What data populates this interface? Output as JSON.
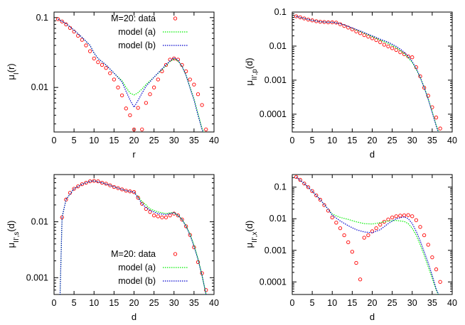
{
  "chart_data": [
    {
      "id": "top-left",
      "type": "scatter",
      "xlabel": "r",
      "ylabel": "μ_I(r)",
      "xlim": [
        0,
        40
      ],
      "ylim": [
        0.0023,
        0.12
      ],
      "yscale": "log",
      "xticks": [
        "0",
        "5",
        "10",
        "15",
        "20",
        "25",
        "30",
        "35",
        "40"
      ],
      "yticks": [
        {
          "v": 0.1,
          "label": "0.1"
        },
        {
          "v": 0.01,
          "label": "0.01"
        }
      ],
      "legend": "top-right",
      "series": [
        {
          "name": "M=20: data",
          "style": "points",
          "color": "#ff0000",
          "x": [
            1,
            2,
            3,
            4,
            5,
            6,
            7,
            8,
            9,
            10,
            11,
            12,
            13,
            14,
            15,
            16,
            17,
            18,
            19,
            20,
            21,
            22,
            23,
            24,
            25,
            26,
            27,
            28,
            29,
            30,
            31,
            32,
            33,
            34,
            35,
            36,
            37,
            38
          ],
          "y": [
            0.095,
            0.088,
            0.08,
            0.071,
            0.063,
            0.055,
            0.048,
            0.04,
            0.033,
            0.026,
            0.023,
            0.021,
            0.019,
            0.016,
            0.013,
            0.01,
            0.0077,
            0.005,
            0.004,
            0.0025,
            0.0051,
            0.0025,
            0.006,
            0.008,
            0.01,
            0.013,
            0.017,
            0.021,
            0.025,
            0.026,
            0.025,
            0.021,
            0.017,
            0.013,
            0.011,
            0.008,
            0.0056,
            0.0025
          ]
        },
        {
          "name": "model (a)",
          "style": "dots",
          "color": "#00ee00",
          "x": [
            1,
            3,
            5,
            7,
            9,
            10,
            11,
            13,
            15,
            17,
            18,
            19,
            20,
            21,
            22,
            23,
            25,
            27,
            29,
            30,
            31,
            32,
            33,
            34,
            35,
            36,
            37,
            38
          ],
          "y": [
            0.095,
            0.082,
            0.066,
            0.052,
            0.04,
            0.031,
            0.026,
            0.021,
            0.016,
            0.0125,
            0.01,
            0.0083,
            0.0078,
            0.0084,
            0.0095,
            0.011,
            0.014,
            0.018,
            0.0235,
            0.0255,
            0.024,
            0.02,
            0.015,
            0.01,
            0.0068,
            0.0042,
            0.0026,
            0.002
          ]
        },
        {
          "name": "model (b)",
          "style": "dots",
          "color": "#0000cc",
          "x": [
            1,
            3,
            5,
            7,
            9,
            10,
            11,
            13,
            15,
            17,
            18,
            19,
            20,
            21,
            22,
            23,
            25,
            27,
            29,
            30,
            31,
            32,
            33,
            34,
            35,
            36,
            37,
            38
          ],
          "y": [
            0.095,
            0.082,
            0.066,
            0.052,
            0.04,
            0.031,
            0.026,
            0.021,
            0.016,
            0.012,
            0.0088,
            0.0066,
            0.0052,
            0.0065,
            0.0083,
            0.0104,
            0.014,
            0.0185,
            0.024,
            0.0265,
            0.0245,
            0.02,
            0.015,
            0.0098,
            0.0066,
            0.004,
            0.0025,
            0.0019
          ]
        }
      ]
    },
    {
      "id": "top-right",
      "type": "scatter",
      "xlabel": "d",
      "ylabel": "μ_{II',p}(d)",
      "xlim": [
        0,
        40
      ],
      "ylim": [
        3e-05,
        0.1
      ],
      "yscale": "log",
      "xticks": [
        "0",
        "5",
        "10",
        "15",
        "20",
        "25",
        "30",
        "35",
        "40"
      ],
      "yticks": [
        {
          "v": 0.1,
          "label": "0.1"
        },
        {
          "v": 0.01,
          "label": "0.01"
        },
        {
          "v": 0.001,
          "label": "0.001"
        },
        {
          "v": 0.0001,
          "label": "0.0001"
        }
      ],
      "series": [
        {
          "name": "data",
          "style": "points",
          "color": "#ff0000",
          "x": [
            1,
            2,
            3,
            4,
            5,
            6,
            7,
            8,
            9,
            10,
            11,
            12,
            13,
            14,
            15,
            16,
            17,
            18,
            19,
            20,
            21,
            22,
            23,
            24,
            25,
            26,
            27,
            28,
            29,
            30,
            31,
            32,
            33,
            34,
            35,
            36,
            37
          ],
          "y": [
            0.075,
            0.07,
            0.065,
            0.06,
            0.057,
            0.054,
            0.052,
            0.051,
            0.05,
            0.05,
            0.049,
            0.044,
            0.039,
            0.035,
            0.031,
            0.027,
            0.024,
            0.021,
            0.019,
            0.017,
            0.015,
            0.013,
            0.011,
            0.0098,
            0.0087,
            0.0077,
            0.0066,
            0.0058,
            0.005,
            0.0047,
            0.0024,
            0.0013,
            0.0006,
            0.00035,
            0.00016,
            8e-05,
            3.8e-05
          ]
        },
        {
          "name": "model (a)",
          "style": "dots",
          "color": "#00ee00",
          "x": [
            1,
            3,
            5,
            7,
            9,
            10,
            12,
            14,
            16,
            18,
            20,
            22,
            24,
            26,
            27,
            28,
            29,
            30,
            31,
            32,
            33,
            34,
            35,
            36,
            37
          ],
          "y": [
            0.075,
            0.065,
            0.057,
            0.052,
            0.05,
            0.05,
            0.046,
            0.038,
            0.03,
            0.024,
            0.019,
            0.015,
            0.012,
            0.009,
            0.0075,
            0.006,
            0.0046,
            0.0033,
            0.0021,
            0.0012,
            0.00062,
            0.00028,
            0.00012,
            4.8e-05,
            2.2e-05
          ]
        },
        {
          "name": "model (b)",
          "style": "dots",
          "color": "#0000cc",
          "x": [
            1,
            3,
            5,
            7,
            9,
            10,
            12,
            14,
            16,
            18,
            20,
            22,
            24,
            26,
            27,
            28,
            29,
            30,
            31,
            32,
            33,
            34,
            35,
            36,
            37
          ],
          "y": [
            0.075,
            0.065,
            0.057,
            0.052,
            0.05,
            0.05,
            0.046,
            0.038,
            0.031,
            0.025,
            0.02,
            0.016,
            0.013,
            0.0098,
            0.0082,
            0.0066,
            0.005,
            0.0035,
            0.0022,
            0.0012,
            0.0006,
            0.00027,
            0.00011,
            4.5e-05,
            2e-05
          ]
        }
      ]
    },
    {
      "id": "bottom-left",
      "type": "scatter",
      "xlabel": "d",
      "ylabel": "μ_{II',s}(d)",
      "xlim": [
        0,
        40
      ],
      "ylim": [
        0.0005,
        0.07
      ],
      "yscale": "log",
      "xticks": [
        "0",
        "5",
        "10",
        "15",
        "20",
        "25",
        "30",
        "35",
        "40"
      ],
      "yticks": [
        {
          "v": 0.01,
          "label": "0.01"
        },
        {
          "v": 0.001,
          "label": "0.001"
        }
      ],
      "legend": "bottom-right",
      "series": [
        {
          "name": "M=20: data",
          "style": "points",
          "color": "#ff0000",
          "x": [
            2,
            3,
            4,
            5,
            6,
            7,
            8,
            9,
            10,
            11,
            12,
            13,
            14,
            15,
            16,
            17,
            18,
            19,
            20,
            21,
            22,
            23,
            24,
            25,
            26,
            27,
            28,
            29,
            30,
            31,
            32,
            33,
            34,
            35,
            36,
            37,
            38
          ],
          "y": [
            0.012,
            0.025,
            0.033,
            0.039,
            0.043,
            0.047,
            0.05,
            0.053,
            0.054,
            0.053,
            0.05,
            0.048,
            0.045,
            0.042,
            0.04,
            0.038,
            0.036,
            0.035,
            0.034,
            0.027,
            0.021,
            0.017,
            0.015,
            0.013,
            0.0125,
            0.012,
            0.012,
            0.013,
            0.014,
            0.013,
            0.011,
            0.0083,
            0.0058,
            0.0035,
            0.0019,
            0.0012,
            0.0006
          ]
        },
        {
          "name": "model (a)",
          "style": "dots",
          "color": "#00ee00",
          "x": [
            1.5,
            2,
            3,
            5,
            7,
            9,
            10,
            12,
            14,
            16,
            18,
            20,
            21,
            22,
            23,
            24,
            26,
            28,
            29,
            30,
            31,
            32,
            33,
            34,
            35,
            36,
            37,
            38
          ],
          "y": [
            0.00045,
            0.012,
            0.025,
            0.039,
            0.047,
            0.053,
            0.054,
            0.05,
            0.045,
            0.04,
            0.036,
            0.034,
            0.028,
            0.023,
            0.02,
            0.017,
            0.015,
            0.014,
            0.0145,
            0.0145,
            0.013,
            0.011,
            0.0085,
            0.006,
            0.0038,
            0.0022,
            0.0011,
            0.0005
          ]
        },
        {
          "name": "model (b)",
          "style": "dots",
          "color": "#0000cc",
          "x": [
            1.5,
            2,
            3,
            5,
            7,
            9,
            10,
            12,
            14,
            16,
            18,
            20,
            21,
            22,
            23,
            24,
            26,
            28,
            29,
            30,
            31,
            32,
            33,
            34,
            35,
            36,
            37,
            38
          ],
          "y": [
            0.00045,
            0.012,
            0.025,
            0.039,
            0.047,
            0.053,
            0.054,
            0.05,
            0.045,
            0.04,
            0.036,
            0.034,
            0.027,
            0.021,
            0.018,
            0.016,
            0.014,
            0.0135,
            0.014,
            0.0145,
            0.013,
            0.011,
            0.0083,
            0.0058,
            0.0036,
            0.0021,
            0.0011,
            0.0005
          ]
        }
      ]
    },
    {
      "id": "bottom-right",
      "type": "scatter",
      "xlabel": "d",
      "ylabel": "μ_{II',x}(d)",
      "xlim": [
        0,
        40
      ],
      "ylim": [
        4e-05,
        0.25
      ],
      "yscale": "log",
      "xticks": [
        "0",
        "5",
        "10",
        "15",
        "20",
        "25",
        "30",
        "35",
        "40"
      ],
      "yticks": [
        {
          "v": 0.1,
          "label": "0.1"
        },
        {
          "v": 0.01,
          "label": "0.01"
        },
        {
          "v": 0.001,
          "label": "0.001"
        },
        {
          "v": 0.0001,
          "label": "0.0001"
        }
      ],
      "series": [
        {
          "name": "data",
          "style": "points",
          "color": "#ff0000",
          "x": [
            1,
            2,
            3,
            4,
            5,
            6,
            7,
            8,
            9,
            10,
            11,
            12,
            13,
            14,
            15,
            16,
            17,
            18,
            19,
            20,
            21,
            22,
            23,
            24,
            25,
            26,
            27,
            28,
            29,
            30,
            31,
            32,
            33,
            34,
            35,
            36,
            37
          ],
          "y": [
            0.21,
            0.17,
            0.13,
            0.1,
            0.075,
            0.055,
            0.04,
            0.027,
            0.018,
            0.011,
            0.0075,
            0.005,
            0.003,
            0.0018,
            0.0009,
            0.0004,
            0.00012,
            0.0025,
            0.003,
            0.004,
            0.005,
            0.0065,
            0.008,
            0.0095,
            0.011,
            0.012,
            0.0125,
            0.0128,
            0.013,
            0.012,
            0.009,
            0.0055,
            0.003,
            0.0015,
            0.0006,
            0.00025,
            0.0001
          ]
        },
        {
          "name": "model (a)",
          "style": "dots",
          "color": "#00ee00",
          "x": [
            1,
            3,
            5,
            7,
            9,
            10,
            12,
            14,
            16,
            18,
            20,
            22,
            24,
            26,
            28,
            29,
            30,
            31,
            32,
            33,
            34,
            35,
            36,
            37
          ],
          "y": [
            0.21,
            0.13,
            0.075,
            0.04,
            0.02,
            0.014,
            0.011,
            0.0095,
            0.008,
            0.007,
            0.0068,
            0.0075,
            0.0085,
            0.0088,
            0.0082,
            0.007,
            0.005,
            0.003,
            0.0015,
            0.0007,
            0.0003,
            0.00013,
            5.5e-05,
            3e-05
          ]
        },
        {
          "name": "model (b)",
          "style": "dots",
          "color": "#0000cc",
          "x": [
            1,
            3,
            5,
            7,
            9,
            10,
            12,
            14,
            16,
            18,
            20,
            22,
            24,
            26,
            28,
            29,
            30,
            31,
            32,
            33,
            34,
            35,
            36,
            37
          ],
          "y": [
            0.21,
            0.13,
            0.075,
            0.04,
            0.02,
            0.013,
            0.0085,
            0.006,
            0.0045,
            0.0038,
            0.0036,
            0.0045,
            0.007,
            0.01,
            0.0115,
            0.01,
            0.007,
            0.004,
            0.002,
            0.0009,
            0.0004,
            0.00016,
            6e-05,
            3e-05
          ]
        }
      ]
    }
  ]
}
